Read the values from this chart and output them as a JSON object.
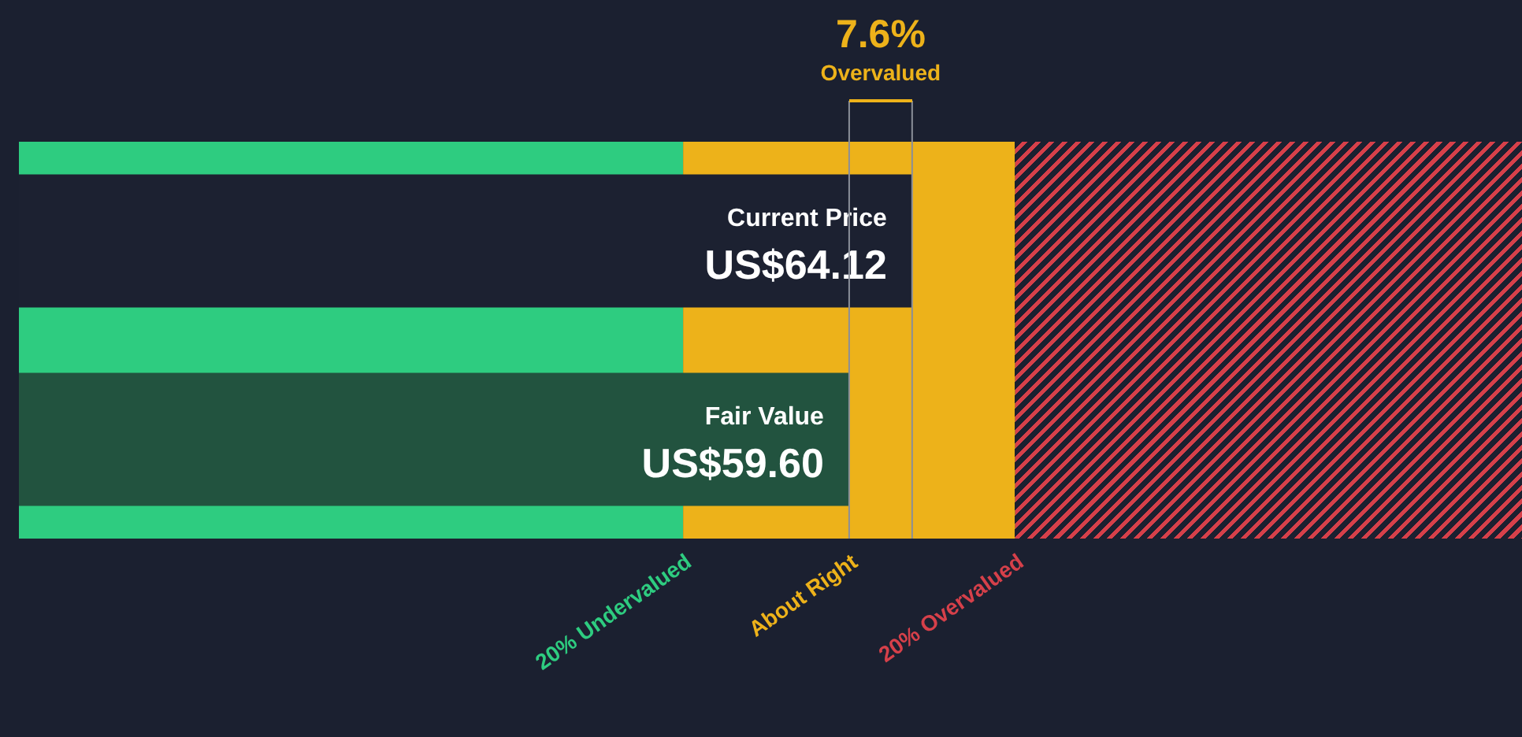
{
  "chart_data": {
    "type": "bar",
    "orientation": "horizontal",
    "categories": [
      "Current Price",
      "Fair Value"
    ],
    "values": [
      64.12,
      59.6
    ],
    "value_labels": [
      "US$64.12",
      "US$59.60"
    ],
    "colors": [
      "#1c2131",
      "#22533f"
    ],
    "bands": [
      {
        "axis": "x",
        "from": 0,
        "to": 47.68,
        "label": "20% Undervalued",
        "color": "#2ecc80"
      },
      {
        "axis": "x",
        "from": 47.68,
        "to": 71.52,
        "label": "About Right",
        "color": "#edb21a"
      },
      {
        "axis": "x",
        "from": 71.52,
        "to": 107.9,
        "label": "20% Overvalued",
        "color": "#d6404a"
      }
    ],
    "ref_lines": [
      {
        "axis": "x",
        "value": 59.6,
        "color": "#8a8f99"
      },
      {
        "axis": "x",
        "value": 64.12,
        "color": "#8a8f99"
      }
    ],
    "annotations": [
      "7.6%",
      "Overvalued"
    ],
    "legend": false
  }
}
